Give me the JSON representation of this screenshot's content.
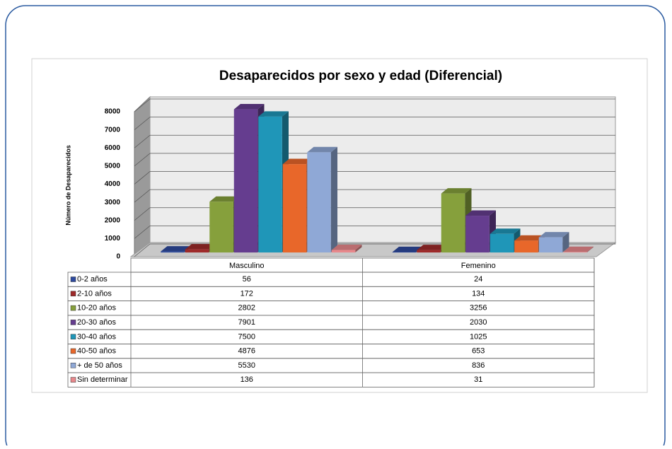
{
  "chart_data": {
    "type": "bar3d",
    "title": "Desaparecidos por sexo y edad (Diferencial)",
    "y_label": "Número de Desaparecidos",
    "categories": [
      "Masculino",
      "Femenino"
    ],
    "series": [
      {
        "name": "0-2 años",
        "color": "#2e4a9e",
        "values": [
          56,
          24
        ]
      },
      {
        "name": "2-10 años",
        "color": "#9e2a2a",
        "values": [
          172,
          134
        ]
      },
      {
        "name": "10-20 años",
        "color": "#86a03c",
        "values": [
          2802,
          3256
        ]
      },
      {
        "name": "20-30 años",
        "color": "#653d8f",
        "values": [
          7901,
          2030
        ]
      },
      {
        "name": "30-40 años",
        "color": "#1f96b8",
        "values": [
          7500,
          1025
        ]
      },
      {
        "name": "40-50 años",
        "color": "#e8672a",
        "values": [
          4876,
          653
        ]
      },
      {
        "name": "+ de 50 años",
        "color": "#8fa8d6",
        "values": [
          5530,
          836
        ]
      },
      {
        "name": "Sin determinar",
        "color": "#e8888c",
        "values": [
          136,
          31
        ]
      }
    ],
    "ylim": [
      0,
      8000
    ],
    "yticks": [
      0,
      1000,
      2000,
      3000,
      4000,
      5000,
      6000,
      7000,
      8000
    ],
    "grid": true
  }
}
